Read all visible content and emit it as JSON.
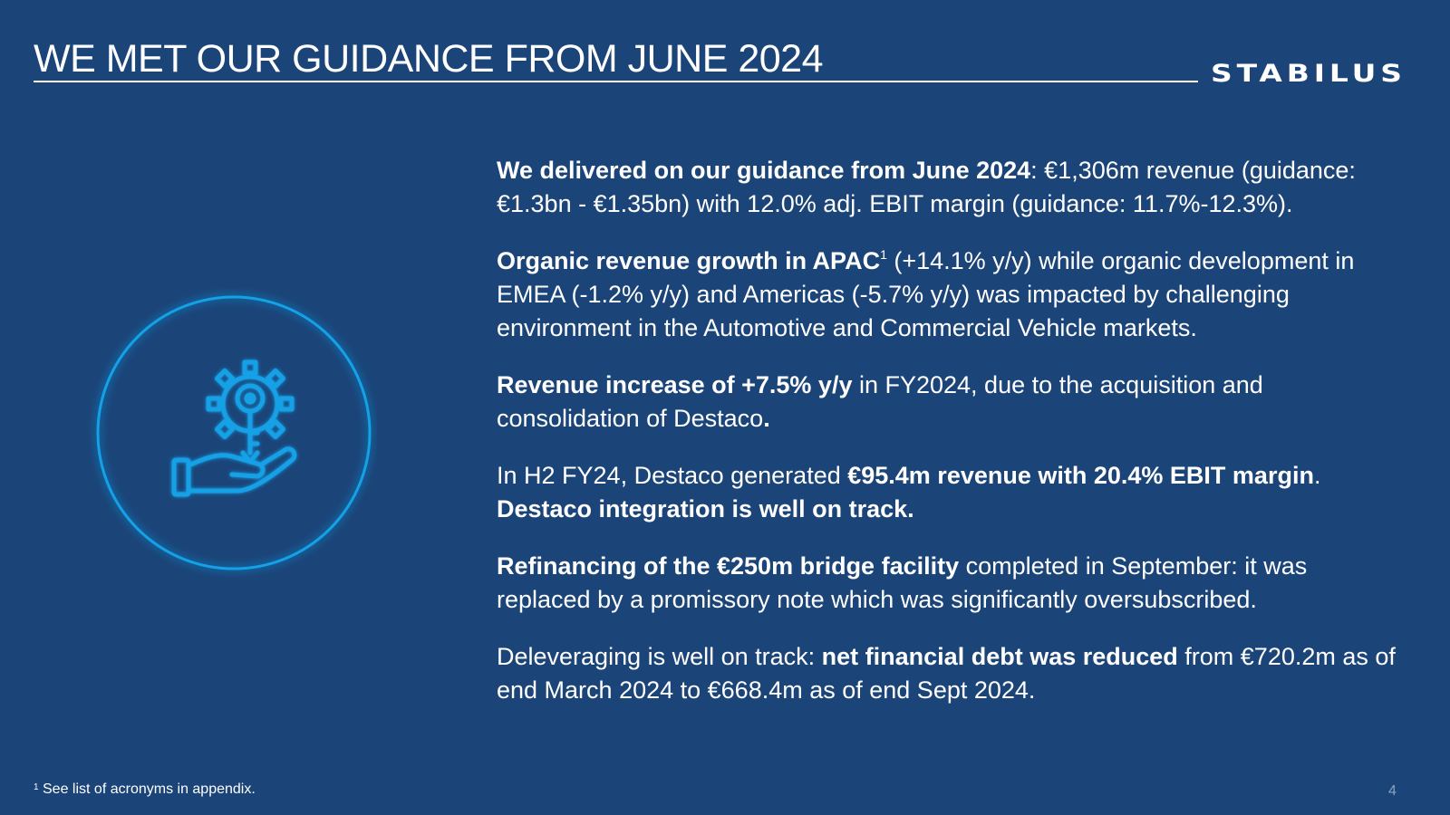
{
  "slide": {
    "title": "WE MET OUR GUIDANCE FROM JUNE 2024",
    "logo_text": "STABILUS",
    "icon": "gear-key-hand-icon",
    "colors": {
      "background": "#1b4478",
      "accent": "#14a0e6",
      "text": "#ffffff"
    },
    "paragraphs": [
      {
        "b1": "We delivered on our guidance from June 2024",
        "t1": ": €1,306m revenue (guidance: €1.3bn - €1.35bn) with 12.0% adj. EBIT margin (guidance: 11.7%-12.3%)."
      },
      {
        "b1": "Organic revenue growth in APAC",
        "sup": "1",
        "t1": " (+14.1% y/y) while organic development in EMEA (-1.2% y/y) and Americas (-5.7% y/y) was impacted by challenging environment in the Automotive and Commercial Vehicle markets."
      },
      {
        "b1": "Revenue increase of  +7.5% y/y",
        "t1": " in FY2024, due to the acquisition and consolidation of Destaco",
        "b2": "."
      },
      {
        "t1": "In H2 FY24, Destaco generated ",
        "b1": "€95.4m revenue with 20.4% EBIT margin",
        "t2": ". ",
        "b2": "Destaco integration is well on track."
      },
      {
        "b1": "Refinancing of the €250m bridge facility",
        "t1": " completed in September: it was replaced by a promissory note which was significantly oversubscribed."
      },
      {
        "t1": "Deleveraging is well on track: ",
        "b1": "net financial debt was reduced",
        "t2": " from €720.2m as of end March 2024 to €668.4m as of end Sept 2024."
      }
    ],
    "footnote": {
      "sup": "1",
      "text": " See list of acronyms in appendix."
    },
    "page_number": "4"
  }
}
